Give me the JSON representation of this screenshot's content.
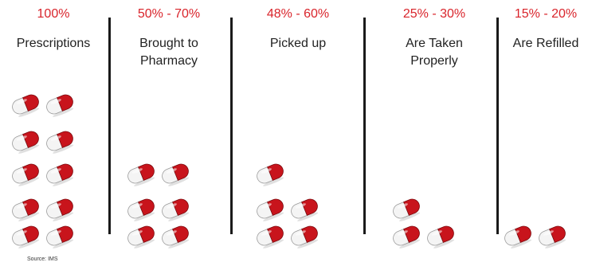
{
  "columns": [
    {
      "percent": "100%",
      "label": "Prescriptions",
      "pill_count": 10
    },
    {
      "percent": "50% - 70%",
      "label": "Brought to\nPharmacy",
      "pill_count": 6
    },
    {
      "percent": "48% - 60%",
      "label": "Picked up",
      "pill_count": 5
    },
    {
      "percent": "25% - 30%",
      "label": "Are Taken\nProperly",
      "pill_count": 3
    },
    {
      "percent": "15% - 20%",
      "label": "Are Refilled",
      "pill_count": 2
    }
  ],
  "source": "Source: IMS",
  "colors": {
    "accent": "#d9242b",
    "pill_red": "#c8141c",
    "pill_white": "#f4f4f4"
  },
  "icon": "pill-capsule-icon"
}
